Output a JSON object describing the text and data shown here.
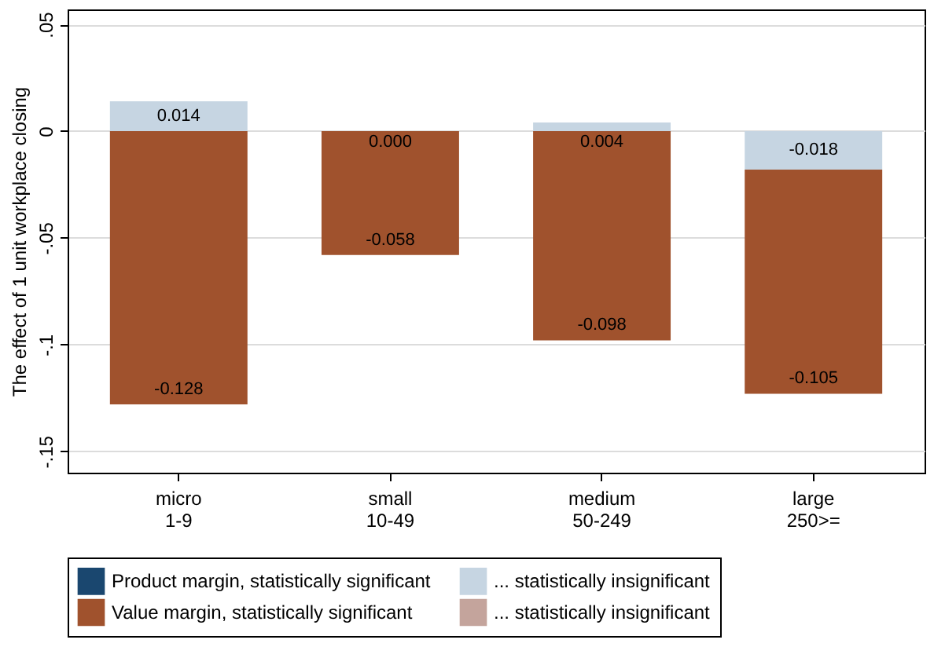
{
  "chart_data": {
    "type": "bar",
    "stacked": true,
    "ylabel": "The effect of 1 unit workplace closing",
    "categories": [
      "micro\n1-9",
      "small\n10-49",
      "medium\n50-249",
      "large\n250>="
    ],
    "series": [
      {
        "name": "Product margin, statistically significant",
        "color": "#1a476f",
        "values": [
          null,
          null,
          null,
          null
        ]
      },
      {
        "name": "... statistically insignificant",
        "color": "#c6d5e2",
        "values": [
          0.014,
          0.0,
          0.004,
          -0.018
        ],
        "value_labels": [
          "0.014",
          "0.000",
          "0.004",
          "-0.018"
        ]
      },
      {
        "name": "Value margin, statistically significant",
        "color": "#a0522d",
        "values": [
          -0.128,
          -0.058,
          -0.098,
          -0.105
        ],
        "value_labels": [
          "-0.128",
          "-0.058",
          "-0.098",
          "-0.105"
        ]
      },
      {
        "name": "... statistically insignificant",
        "color": "#c4a49c",
        "values": [
          null,
          null,
          null,
          null
        ]
      }
    ],
    "ylim": [
      -0.16,
      0.057
    ],
    "yticks": [
      {
        "value": -0.15,
        "label": "-.15"
      },
      {
        "value": -0.1,
        "label": "-.1"
      },
      {
        "value": -0.05,
        "label": "-.05"
      },
      0,
      {
        "value": 0.05,
        "label": ".05"
      }
    ],
    "grid": "y",
    "legend": "bottom"
  }
}
